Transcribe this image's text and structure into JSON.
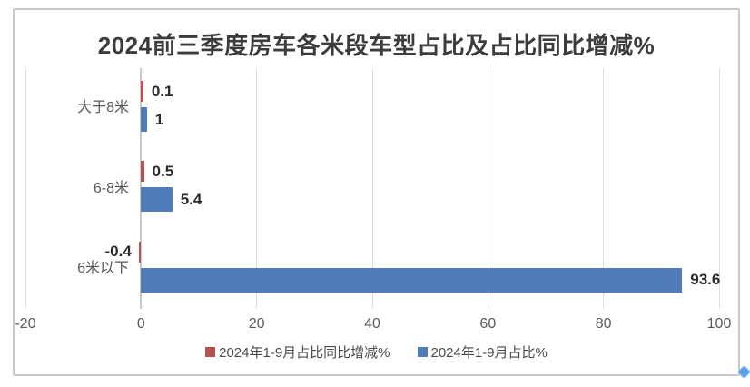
{
  "chart_data": {
    "type": "bar",
    "orientation": "horizontal",
    "title": "2024前三季度房车各米段车型占比及占比同比增减%",
    "categories": [
      "大于8米",
      "6-8米",
      "6米以下"
    ],
    "series": [
      {
        "name": "2024年1-9月占比同比增减%",
        "color": "#b5534e",
        "values": [
          0.1,
          0.5,
          -0.4
        ],
        "labels": [
          "0.1",
          "0.5",
          "-0.4"
        ]
      },
      {
        "name": "2024年1-9月占比%",
        "color": "#507cb9",
        "values": [
          1,
          5.4,
          93.6
        ],
        "labels": [
          "1",
          "5.4",
          "93.6"
        ]
      }
    ],
    "xlim": [
      -20,
      100
    ],
    "xticks": [
      -20,
      0,
      20,
      40,
      60,
      80,
      100
    ],
    "grid": true,
    "legend_position": "bottom",
    "gridline_color": "#dedede",
    "axis_line_color": "#c9c9c9"
  },
  "frame": {
    "border_color": "#c9c9c9",
    "selection_handle_color": "#58a0ea"
  }
}
